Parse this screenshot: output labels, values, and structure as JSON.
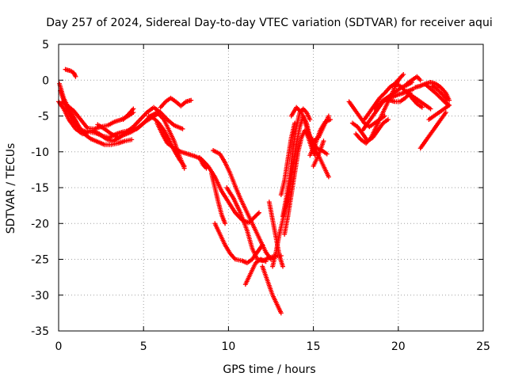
{
  "chart_data": {
    "type": "scatter",
    "title": "Day 257 of 2024, Sidereal Day-to-day VTEC variation (SDTVAR) for receiver aqui",
    "xlabel": "GPS time / hours",
    "ylabel": "SDTVAR / TECUs",
    "xlim": [
      0,
      25
    ],
    "ylim": [
      -35,
      5
    ],
    "xticks": [
      0,
      5,
      10,
      15,
      20,
      25
    ],
    "yticks": [
      5,
      0,
      -5,
      -10,
      -15,
      -20,
      -25,
      -30,
      -35
    ],
    "grid": true,
    "marker": "plus",
    "color": "#ff0000",
    "tracks": [
      [
        [
          0.05,
          -0.5
        ],
        [
          0.3,
          -2.5
        ],
        [
          0.6,
          -4.0
        ],
        [
          0.9,
          -5.2
        ],
        [
          1.2,
          -6.5
        ],
        [
          1.5,
          -7.5
        ],
        [
          1.9,
          -8.2
        ],
        [
          2.3,
          -8.6
        ],
        [
          2.7,
          -9.0
        ],
        [
          3.1,
          -9.0
        ],
        [
          3.5,
          -8.8
        ],
        [
          3.9,
          -8.5
        ],
        [
          4.3,
          -8.3
        ]
      ],
      [
        [
          0.1,
          -1.5
        ],
        [
          0.4,
          -3.5
        ],
        [
          0.8,
          -5.5
        ],
        [
          1.2,
          -6.8
        ],
        [
          1.6,
          -7.2
        ],
        [
          2.0,
          -7.0
        ],
        [
          2.4,
          -7.5
        ],
        [
          2.8,
          -8.2
        ],
        [
          3.2,
          -8.5
        ],
        [
          3.6,
          -8.0
        ],
        [
          4.0,
          -7.2
        ],
        [
          4.4,
          -6.5
        ],
        [
          4.8,
          -5.5
        ],
        [
          5.2,
          -4.5
        ],
        [
          5.6,
          -3.8
        ],
        [
          6.0,
          -4.5
        ],
        [
          6.4,
          -5.5
        ],
        [
          6.8,
          -6.3
        ],
        [
          7.3,
          -6.8
        ]
      ],
      [
        [
          0.0,
          -3.0
        ],
        [
          0.3,
          -4.0
        ],
        [
          0.6,
          -5.5
        ],
        [
          1.0,
          -6.8
        ],
        [
          1.4,
          -7.5
        ],
        [
          1.8,
          -7.2
        ],
        [
          2.2,
          -7.4
        ],
        [
          2.6,
          -7.8
        ],
        [
          3.0,
          -8.0
        ],
        [
          3.4,
          -7.5
        ],
        [
          3.8,
          -7.2
        ],
        [
          4.2,
          -7.0
        ],
        [
          4.6,
          -6.8
        ],
        [
          5.0,
          -6.0
        ],
        [
          5.4,
          -5.0
        ],
        [
          5.8,
          -4.5
        ],
        [
          6.2,
          -5.5
        ],
        [
          6.5,
          -7.0
        ],
        [
          6.8,
          -8.5
        ],
        [
          7.1,
          -10.5
        ],
        [
          7.4,
          -12.3
        ]
      ],
      [
        [
          0.2,
          -3.0
        ],
        [
          0.5,
          -3.5
        ],
        [
          0.9,
          -4.3
        ],
        [
          1.3,
          -5.5
        ],
        [
          1.7,
          -6.7
        ],
        [
          2.1,
          -6.8
        ],
        [
          2.5,
          -6.5
        ],
        [
          2.9,
          -6.3
        ],
        [
          3.3,
          -5.8
        ],
        [
          3.7,
          -5.5
        ],
        [
          4.1,
          -5.0
        ],
        [
          4.4,
          -4.5
        ]
      ],
      [
        [
          2.3,
          -6.2
        ],
        [
          2.7,
          -6.8
        ],
        [
          3.1,
          -7.5
        ],
        [
          3.5,
          -8.0
        ],
        [
          3.9,
          -7.6
        ],
        [
          4.3,
          -7.2
        ],
        [
          4.7,
          -6.6
        ],
        [
          5.1,
          -5.8
        ],
        [
          5.5,
          -5.2
        ],
        [
          5.9,
          -4.6
        ]
      ],
      [
        [
          3.8,
          -5.5
        ],
        [
          4.1,
          -4.8
        ],
        [
          4.4,
          -4.0
        ]
      ],
      [
        [
          0.4,
          1.5
        ],
        [
          0.7,
          1.3
        ],
        [
          0.9,
          1.0
        ],
        [
          1.0,
          0.5
        ]
      ],
      [
        [
          5.3,
          -5.0
        ],
        [
          5.6,
          -5.3
        ],
        [
          5.9,
          -6.0
        ],
        [
          6.2,
          -7.0
        ],
        [
          6.5,
          -8.3
        ],
        [
          6.8,
          -9.8
        ],
        [
          7.1,
          -11.0
        ],
        [
          7.4,
          -12.0
        ]
      ],
      [
        [
          6.0,
          -3.8
        ],
        [
          6.3,
          -3.0
        ],
        [
          6.6,
          -2.5
        ],
        [
          6.9,
          -3.0
        ],
        [
          7.2,
          -3.6
        ],
        [
          7.5,
          -3.0
        ],
        [
          7.8,
          -2.8
        ]
      ],
      [
        [
          5.8,
          -6.0
        ],
        [
          6.1,
          -7.5
        ],
        [
          6.4,
          -8.8
        ],
        [
          6.8,
          -9.5
        ],
        [
          7.2,
          -10.0
        ],
        [
          7.6,
          -10.3
        ],
        [
          8.0,
          -10.6
        ],
        [
          8.4,
          -11.0
        ],
        [
          8.8,
          -12.0
        ],
        [
          9.2,
          -13.5
        ],
        [
          9.6,
          -15.5
        ],
        [
          10.0,
          -17.0
        ],
        [
          10.4,
          -18.5
        ],
        [
          10.8,
          -19.5
        ],
        [
          11.2,
          -19.9
        ],
        [
          11.5,
          -19.2
        ],
        [
          11.8,
          -18.5
        ]
      ],
      [
        [
          8.3,
          -10.8
        ],
        [
          8.5,
          -11.8
        ],
        [
          8.7,
          -12.3
        ]
      ],
      [
        [
          9.1,
          -9.8
        ],
        [
          9.5,
          -10.3
        ],
        [
          9.8,
          -11.5
        ],
        [
          10.1,
          -13.0
        ],
        [
          10.4,
          -14.8
        ],
        [
          10.7,
          -16.5
        ],
        [
          11.0,
          -18.0
        ],
        [
          11.3,
          -19.5
        ],
        [
          11.6,
          -21.0
        ],
        [
          11.9,
          -22.5
        ],
        [
          12.2,
          -24.0
        ],
        [
          12.5,
          -25.0
        ],
        [
          12.8,
          -24.5
        ]
      ],
      [
        [
          9.0,
          -13.0
        ],
        [
          9.2,
          -15.0
        ],
        [
          9.4,
          -17.0
        ],
        [
          9.6,
          -18.8
        ],
        [
          9.8,
          -20.0
        ]
      ],
      [
        [
          9.2,
          -20.0
        ],
        [
          9.5,
          -21.5
        ],
        [
          9.8,
          -23.0
        ],
        [
          10.1,
          -24.2
        ],
        [
          10.4,
          -25.0
        ],
        [
          10.8,
          -25.2
        ],
        [
          11.1,
          -25.5
        ],
        [
          11.4,
          -25.0
        ],
        [
          11.7,
          -24.0
        ],
        [
          12.0,
          -23.0
        ]
      ],
      [
        [
          9.9,
          -15.0
        ],
        [
          10.3,
          -16.5
        ],
        [
          10.7,
          -18.5
        ],
        [
          11.1,
          -21.0
        ],
        [
          11.4,
          -23.5
        ],
        [
          11.7,
          -25.0
        ],
        [
          12.0,
          -25.2
        ],
        [
          12.4,
          -24.8
        ],
        [
          12.8,
          -24.5
        ],
        [
          13.1,
          -24.5
        ]
      ],
      [
        [
          11.0,
          -28.5
        ],
        [
          11.3,
          -27.0
        ],
        [
          11.6,
          -25.5
        ],
        [
          11.9,
          -25.0
        ],
        [
          12.2,
          -25.3
        ]
      ],
      [
        [
          12.0,
          -26.0
        ],
        [
          12.3,
          -28.0
        ],
        [
          12.6,
          -30.0
        ],
        [
          12.9,
          -31.5
        ],
        [
          13.1,
          -32.5
        ]
      ],
      [
        [
          12.4,
          -17.0
        ],
        [
          12.6,
          -19.5
        ],
        [
          12.8,
          -22.0
        ],
        [
          13.0,
          -24.5
        ],
        [
          13.2,
          -26.0
        ]
      ],
      [
        [
          12.6,
          -26.0
        ],
        [
          12.8,
          -24.0
        ],
        [
          13.0,
          -21.5
        ],
        [
          13.2,
          -19.5
        ],
        [
          13.4,
          -17.5
        ],
        [
          13.6,
          -15.0
        ],
        [
          13.8,
          -12.0
        ],
        [
          14.0,
          -9.0
        ],
        [
          14.2,
          -6.5
        ],
        [
          14.4,
          -5.0
        ],
        [
          14.6,
          -6.0
        ],
        [
          14.8,
          -8.0
        ],
        [
          15.0,
          -9.5
        ],
        [
          15.3,
          -10.5
        ],
        [
          15.6,
          -12.0
        ],
        [
          15.9,
          -13.5
        ]
      ],
      [
        [
          13.2,
          -19.0
        ],
        [
          13.4,
          -16.5
        ],
        [
          13.6,
          -13.5
        ],
        [
          13.8,
          -9.5
        ],
        [
          14.0,
          -6.5
        ],
        [
          14.2,
          -4.5
        ],
        [
          14.4,
          -4.0
        ],
        [
          14.6,
          -4.5
        ],
        [
          14.8,
          -5.5
        ]
      ],
      [
        [
          13.3,
          -21.5
        ],
        [
          13.5,
          -19.0
        ],
        [
          13.7,
          -16.0
        ],
        [
          13.9,
          -13.0
        ],
        [
          14.1,
          -10.0
        ],
        [
          14.3,
          -8.0
        ],
        [
          14.5,
          -7.0
        ],
        [
          14.7,
          -8.0
        ],
        [
          14.9,
          -9.5
        ],
        [
          15.1,
          -10.5
        ]
      ],
      [
        [
          13.1,
          -16.0
        ],
        [
          13.3,
          -14.0
        ],
        [
          13.5,
          -11.0
        ],
        [
          13.7,
          -8.0
        ],
        [
          13.9,
          -6.0
        ]
      ],
      [
        [
          13.7,
          -5.0
        ],
        [
          14.0,
          -3.8
        ],
        [
          14.3,
          -4.5
        ],
        [
          14.6,
          -6.5
        ],
        [
          14.9,
          -8.5
        ],
        [
          15.2,
          -9.5
        ],
        [
          15.5,
          -9.8
        ],
        [
          15.8,
          -10.3
        ]
      ],
      [
        [
          14.7,
          -7.5
        ],
        [
          15.0,
          -8.5
        ],
        [
          15.3,
          -8.0
        ],
        [
          15.6,
          -6.5
        ],
        [
          15.9,
          -5.0
        ]
      ],
      [
        [
          14.8,
          -10.5
        ],
        [
          15.1,
          -9.0
        ],
        [
          15.4,
          -7.0
        ],
        [
          15.7,
          -5.8
        ],
        [
          16.0,
          -5.5
        ]
      ],
      [
        [
          15.0,
          -12.0
        ],
        [
          15.3,
          -10.5
        ],
        [
          15.6,
          -8.5
        ]
      ],
      [
        [
          17.3,
          -6.0
        ],
        [
          17.6,
          -6.5
        ],
        [
          17.9,
          -7.5
        ],
        [
          18.2,
          -8.5
        ],
        [
          18.5,
          -8.0
        ],
        [
          18.8,
          -7.0
        ],
        [
          19.1,
          -6.0
        ],
        [
          19.4,
          -5.5
        ]
      ],
      [
        [
          17.1,
          -3.0
        ],
        [
          17.4,
          -4.0
        ],
        [
          17.7,
          -5.0
        ],
        [
          18.0,
          -6.0
        ],
        [
          18.3,
          -6.5
        ],
        [
          18.6,
          -6.0
        ],
        [
          18.9,
          -5.5
        ],
        [
          19.2,
          -5.0
        ]
      ],
      [
        [
          17.5,
          -7.5
        ],
        [
          17.8,
          -8.3
        ],
        [
          18.1,
          -8.8
        ],
        [
          18.4,
          -8.0
        ],
        [
          18.7,
          -6.5
        ],
        [
          19.0,
          -5.0
        ],
        [
          19.3,
          -3.5
        ],
        [
          19.6,
          -2.0
        ],
        [
          19.9,
          -0.5
        ],
        [
          20.0,
          0.0
        ]
      ],
      [
        [
          18.0,
          -5.5
        ],
        [
          18.3,
          -4.5
        ],
        [
          18.6,
          -3.5
        ],
        [
          18.9,
          -2.5
        ],
        [
          19.2,
          -1.8
        ],
        [
          19.5,
          -1.0
        ],
        [
          19.8,
          -0.5
        ],
        [
          20.1,
          0.3
        ],
        [
          20.3,
          0.8
        ]
      ],
      [
        [
          17.9,
          -7.0
        ],
        [
          18.2,
          -6.0
        ],
        [
          18.5,
          -5.0
        ],
        [
          18.8,
          -4.0
        ],
        [
          19.1,
          -3.0
        ],
        [
          19.4,
          -2.5
        ],
        [
          19.7,
          -2.3
        ],
        [
          20.0,
          -2.0
        ],
        [
          20.3,
          -1.8
        ],
        [
          20.6,
          -1.5
        ],
        [
          20.9,
          -1.2
        ]
      ],
      [
        [
          19.0,
          -3.0
        ],
        [
          19.3,
          -2.5
        ],
        [
          19.6,
          -2.0
        ],
        [
          19.9,
          -1.5
        ],
        [
          20.2,
          -1.0
        ],
        [
          20.5,
          -0.7
        ],
        [
          20.8,
          -0.3
        ]
      ],
      [
        [
          18.6,
          -4.0
        ],
        [
          18.9,
          -3.3
        ],
        [
          19.2,
          -2.8
        ],
        [
          19.5,
          -2.8
        ],
        [
          19.8,
          -3.0
        ],
        [
          20.1,
          -3.0
        ],
        [
          20.4,
          -2.5
        ],
        [
          20.7,
          -1.8
        ]
      ],
      [
        [
          19.5,
          -1.0
        ],
        [
          19.8,
          -0.5
        ],
        [
          20.1,
          -0.8
        ],
        [
          20.4,
          -1.5
        ],
        [
          20.7,
          -2.0
        ],
        [
          21.0,
          -2.5
        ],
        [
          21.3,
          -3.0
        ],
        [
          21.6,
          -3.5
        ],
        [
          21.9,
          -4.0
        ]
      ],
      [
        [
          20.5,
          -0.5
        ],
        [
          20.8,
          0.0
        ],
        [
          21.1,
          0.5
        ],
        [
          21.3,
          0.0
        ]
      ],
      [
        [
          21.0,
          -1.0
        ],
        [
          21.3,
          -0.8
        ],
        [
          21.6,
          -0.5
        ],
        [
          21.9,
          -0.3
        ],
        [
          22.2,
          -0.5
        ],
        [
          22.5,
          -1.0
        ],
        [
          22.8,
          -1.8
        ],
        [
          23.0,
          -2.8
        ]
      ],
      [
        [
          21.6,
          -0.6
        ],
        [
          21.9,
          -1.2
        ],
        [
          22.2,
          -1.8
        ],
        [
          22.5,
          -2.5
        ],
        [
          22.8,
          -3.2
        ],
        [
          23.0,
          -3.5
        ],
        [
          22.7,
          -4.0
        ],
        [
          22.4,
          -4.5
        ],
        [
          22.1,
          -5.0
        ],
        [
          21.8,
          -5.5
        ]
      ],
      [
        [
          20.5,
          -1.5
        ],
        [
          20.8,
          -2.5
        ],
        [
          21.1,
          -3.3
        ],
        [
          21.4,
          -3.8
        ]
      ],
      [
        [
          21.3,
          -9.5
        ],
        [
          21.6,
          -8.5
        ],
        [
          21.9,
          -7.5
        ],
        [
          22.2,
          -6.5
        ],
        [
          22.5,
          -5.5
        ],
        [
          22.8,
          -4.5
        ]
      ],
      [
        [
          22.0,
          -0.8
        ],
        [
          22.3,
          -1.3
        ],
        [
          22.6,
          -2.0
        ],
        [
          22.9,
          -2.8
        ]
      ]
    ]
  }
}
